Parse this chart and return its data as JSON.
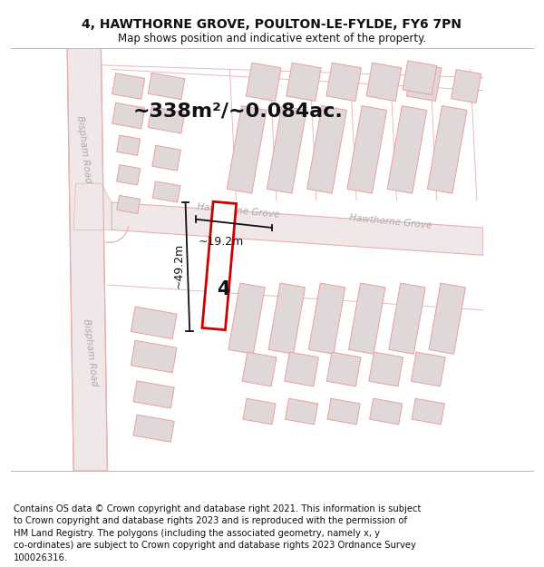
{
  "title": "4, HAWTHORNE GROVE, POULTON-LE-FYLDE, FY6 7PN",
  "subtitle": "Map shows position and indicative extent of the property.",
  "footer": "Contains OS data © Crown copyright and database right 2021. This information is subject\nto Crown copyright and database rights 2023 and is reproduced with the permission of\nHM Land Registry. The polygons (including the associated geometry, namely x, y\nco-ordinates) are subject to Crown copyright and database rights 2023 Ordnance Survey\n100026316.",
  "area_label": "~338m²/~0.084ac.",
  "width_label": "~19.2m",
  "height_label": "~49.2m",
  "property_number": "4",
  "road_label_hawthorne_upper": "Hawthorne Grove",
  "road_label_hawthorne_lower": "Hawthorne Grove",
  "road_label_bispham1": "Bispham Road",
  "road_label_bispham2": "Bispham Road",
  "bg_color": "#ffffff",
  "map_bg": "#f7f2f2",
  "road_fill": "#f0e8e8",
  "road_edge": "#e8b0b0",
  "building_fill": "#e0d8d8",
  "building_edge": "#e8a0a0",
  "plot_fill": "#ffffff",
  "plot_edge": "#cc0000",
  "dim_color": "#111111",
  "title_fontsize": 10,
  "subtitle_fontsize": 8.5,
  "footer_fontsize": 7.2,
  "area_fontsize": 16,
  "label_fontsize": 9,
  "road_text_color": "#aaaaaa",
  "road_text_size": 7.5
}
